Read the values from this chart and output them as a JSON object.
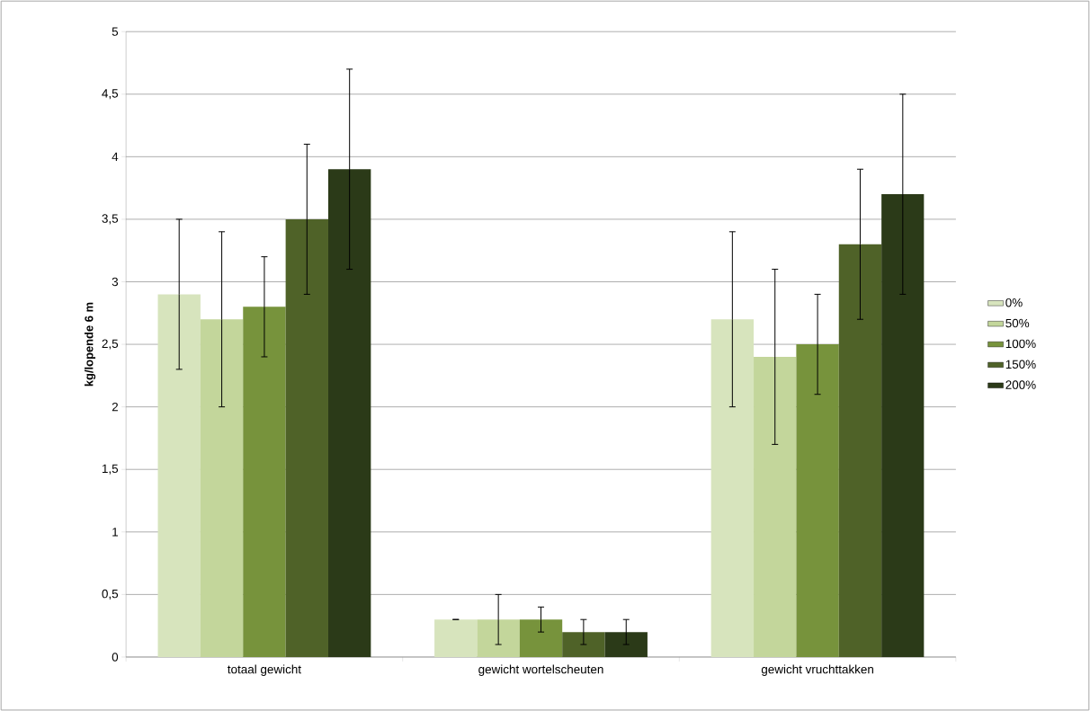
{
  "chart_data": {
    "type": "bar",
    "ylabel": "kg/lopende 6 m",
    "categories": [
      "totaal gewicht",
      "gewicht wortelscheuten",
      "gewicht vruchttakken"
    ],
    "series": [
      {
        "name": "0%",
        "color": "#d7e4bd",
        "values": [
          2.9,
          0.3,
          2.7
        ],
        "errors": [
          0.6,
          0,
          0.7
        ]
      },
      {
        "name": "50%",
        "color": "#c3d69b",
        "values": [
          2.7,
          0.3,
          2.4
        ],
        "errors": [
          0.7,
          0.2,
          0.7
        ]
      },
      {
        "name": "100%",
        "color": "#77933c",
        "values": [
          2.8,
          0.3,
          2.5
        ],
        "errors": [
          0.4,
          0.1,
          0.4
        ]
      },
      {
        "name": "150%",
        "color": "#4f6228",
        "values": [
          3.5,
          0.2,
          3.3
        ],
        "errors": [
          0.6,
          0.1,
          0.6
        ]
      },
      {
        "name": "200%",
        "color": "#2b3a18",
        "values": [
          3.9,
          0.2,
          3.7
        ],
        "errors": [
          0.8,
          0.1,
          0.8
        ]
      }
    ],
    "ylim": [
      0,
      5
    ],
    "yticks": [
      0,
      {
        "value": 0.5,
        "label": "0,5"
      },
      1,
      {
        "value": 1.5,
        "label": "1,5"
      },
      2,
      {
        "value": 2.5,
        "label": "2,5"
      },
      3,
      {
        "value": 3.5,
        "label": "3,5"
      },
      4,
      {
        "value": 4.5,
        "label": "4,5"
      },
      5
    ],
    "grid": "y",
    "legend": "right"
  }
}
